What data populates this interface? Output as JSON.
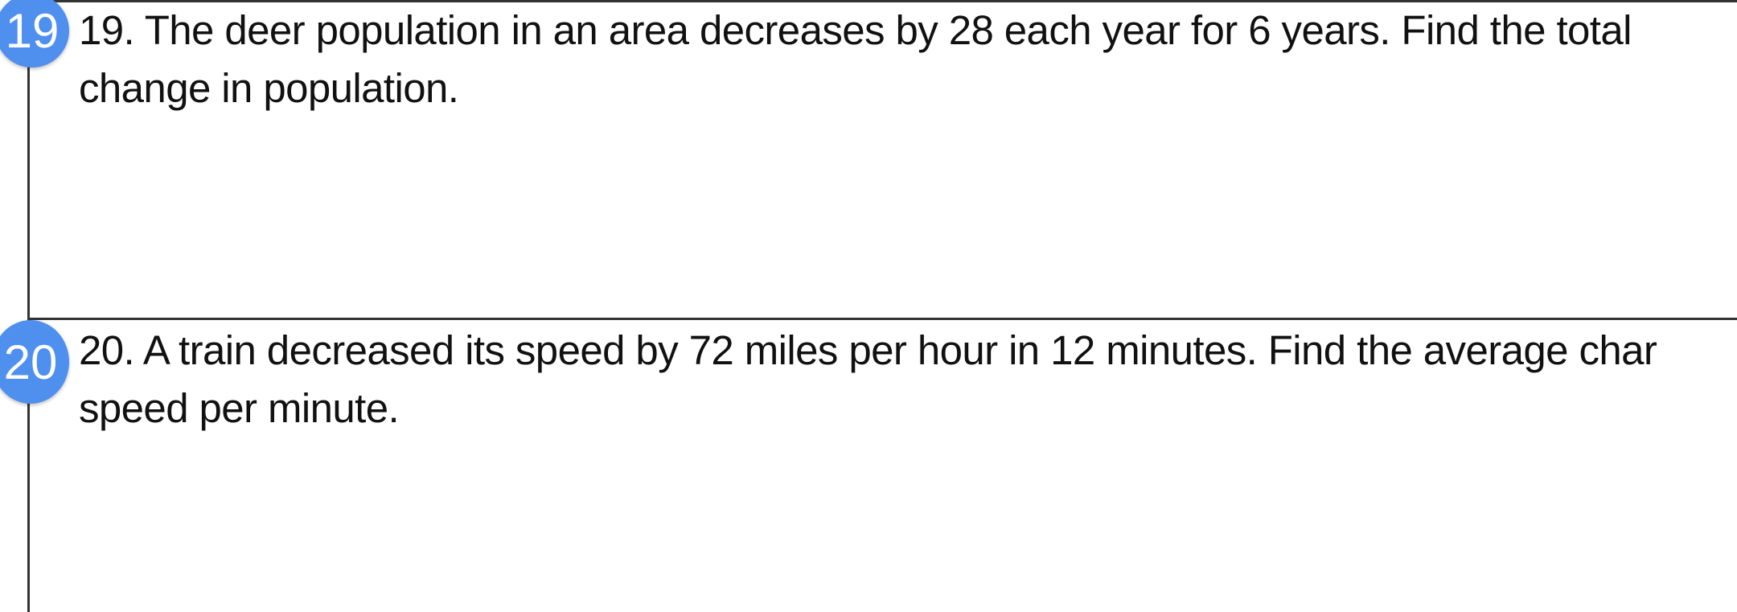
{
  "badge_color": "#4f8fee",
  "questions": [
    {
      "badge": "19",
      "line1": "19. The deer population in an area decreases by 28 each year for 6 years. Find the total",
      "line2": "change in population."
    },
    {
      "badge": "20",
      "line1": "20. A train decreased its speed by 72 miles per hour in 12 minutes. Find the average char",
      "line2": "speed per minute."
    }
  ]
}
